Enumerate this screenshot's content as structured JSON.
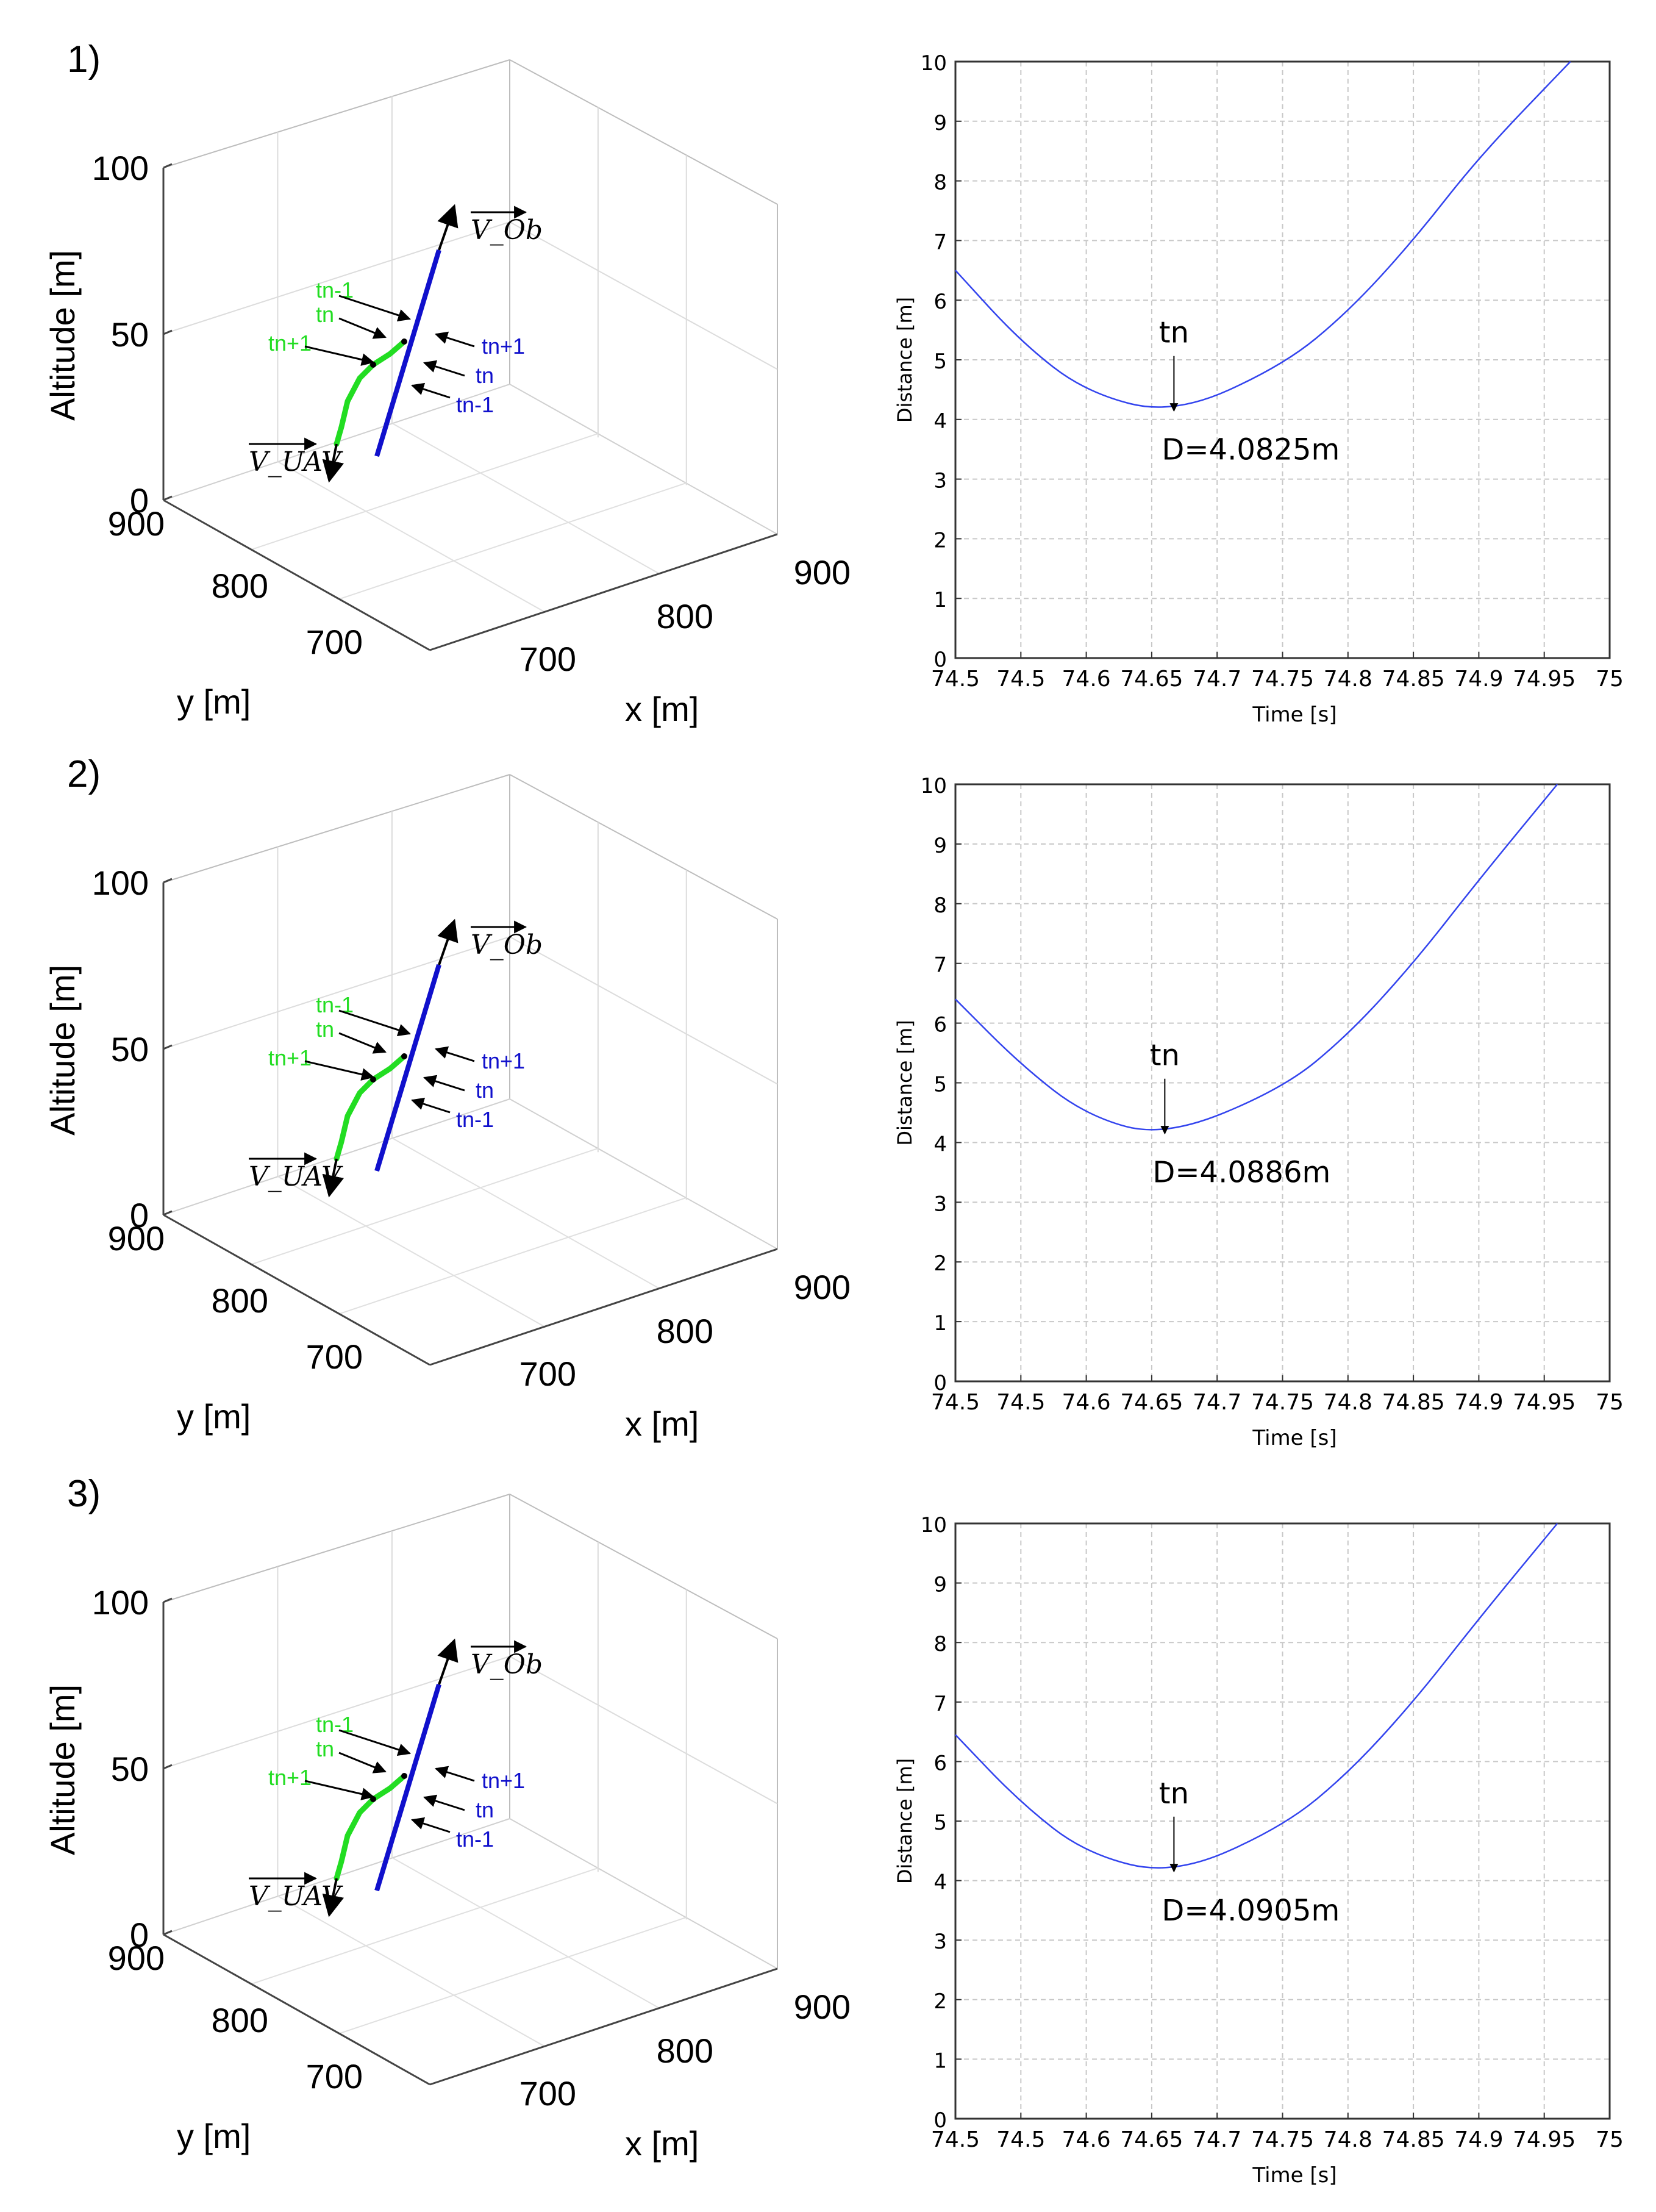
{
  "figure": {
    "panels": [
      {
        "label": "1)"
      },
      {
        "label": "2)"
      },
      {
        "label": "3)"
      }
    ]
  },
  "colors": {
    "uav": "#22dd22",
    "obstacle": "#1010cc",
    "distance_line": "#3344ee",
    "grid": "#c8c8c8",
    "axis": "#444444",
    "text": "#000000"
  },
  "chart_data": [
    {
      "type": "line3d",
      "panel": "1)",
      "xlabel": "x [m]",
      "ylabel": "y [m]",
      "zlabel": "Altitude [m]",
      "xticks": [
        "700",
        "800",
        "900"
      ],
      "yticks": [
        "700",
        "800",
        "900"
      ],
      "zticks": [
        "0",
        "50",
        "100"
      ],
      "vector_labels": {
        "obstacle": "V_Ob",
        "uav": "V_UAV"
      },
      "uav_markers": [
        "tn-1",
        "tn",
        "tn+1"
      ],
      "obstacle_markers": [
        "tn+1",
        "tn",
        "tn-1"
      ]
    },
    {
      "type": "line",
      "panel": "1)",
      "xlabel": "Time [s]",
      "ylabel": "Distance [m]",
      "xlim": [
        74.5,
        75
      ],
      "ylim": [
        0,
        10
      ],
      "xticks": [
        "74.5",
        "74.5",
        "74.6",
        "74.65",
        "74.7",
        "74.75",
        "74.8",
        "74.85",
        "74.9",
        "74.95",
        "75"
      ],
      "yticks": [
        "0",
        "1",
        "2",
        "3",
        "4",
        "5",
        "6",
        "7",
        "8",
        "9",
        "10"
      ],
      "series": [
        {
          "name": "distance",
          "x": [
            74.5,
            74.55,
            74.6,
            74.667,
            74.75,
            74.8,
            74.85,
            74.9,
            74.97
          ],
          "y": [
            6.5,
            5.3,
            4.45,
            4.08,
            4.9,
            5.8,
            7.0,
            8.4,
            10.0
          ]
        }
      ],
      "annotation": {
        "label": "tn",
        "x": 74.667,
        "y": 4.0825,
        "text": "D=4.0825m"
      }
    },
    {
      "type": "line3d",
      "panel": "2)",
      "xlabel": "x [m]",
      "ylabel": "y [m]",
      "zlabel": "Altitude [m]",
      "xticks": [
        "700",
        "800",
        "900"
      ],
      "yticks": [
        "700",
        "800",
        "900"
      ],
      "zticks": [
        "0",
        "50",
        "100"
      ],
      "vector_labels": {
        "obstacle": "V_Ob",
        "uav": "V_UAV"
      },
      "uav_markers": [
        "tn-1",
        "tn",
        "tn+1"
      ],
      "obstacle_markers": [
        "tn+1",
        "tn",
        "tn-1"
      ]
    },
    {
      "type": "line",
      "panel": "2)",
      "xlabel": "Time [s]",
      "ylabel": "Distance [m]",
      "xlim": [
        74.5,
        75
      ],
      "ylim": [
        0,
        10
      ],
      "xticks": [
        "74.5",
        "74.5",
        "74.6",
        "74.65",
        "74.7",
        "74.75",
        "74.8",
        "74.85",
        "74.9",
        "74.95",
        "75"
      ],
      "yticks": [
        "0",
        "1",
        "2",
        "3",
        "4",
        "5",
        "6",
        "7",
        "8",
        "9",
        "10"
      ],
      "series": [
        {
          "name": "distance",
          "x": [
            74.5,
            74.55,
            74.6,
            74.66,
            74.75,
            74.8,
            74.85,
            74.9,
            74.96
          ],
          "y": [
            6.4,
            5.3,
            4.45,
            4.09,
            4.9,
            5.8,
            7.0,
            8.4,
            10.0
          ]
        }
      ],
      "annotation": {
        "label": "tn",
        "x": 74.66,
        "y": 4.0886,
        "text": "D=4.0886m"
      }
    },
    {
      "type": "line3d",
      "panel": "3)",
      "xlabel": "x [m]",
      "ylabel": "y [m]",
      "zlabel": "Altitude [m]",
      "xticks": [
        "700",
        "800",
        "900"
      ],
      "yticks": [
        "700",
        "800",
        "900"
      ],
      "zticks": [
        "0",
        "50",
        "100"
      ],
      "vector_labels": {
        "obstacle": "V_Ob",
        "uav": "V_UAV"
      },
      "uav_markers": [
        "tn-1",
        "tn",
        "tn+1"
      ],
      "obstacle_markers": [
        "tn+1",
        "tn",
        "tn-1"
      ]
    },
    {
      "type": "line",
      "panel": "3)",
      "xlabel": "Time [s]",
      "ylabel": "Distance [m]",
      "xlim": [
        74.5,
        75
      ],
      "ylim": [
        0,
        10
      ],
      "xticks": [
        "74.5",
        "74.5",
        "74.6",
        "74.65",
        "74.7",
        "74.75",
        "74.8",
        "74.85",
        "74.9",
        "74.95",
        "75"
      ],
      "yticks": [
        "0",
        "1",
        "2",
        "3",
        "4",
        "5",
        "6",
        "7",
        "8",
        "9",
        "10"
      ],
      "series": [
        {
          "name": "distance",
          "x": [
            74.5,
            74.55,
            74.6,
            74.667,
            74.75,
            74.8,
            74.85,
            74.9,
            74.96
          ],
          "y": [
            6.45,
            5.3,
            4.45,
            4.09,
            4.9,
            5.8,
            7.0,
            8.4,
            10.0
          ]
        }
      ],
      "annotation": {
        "label": "tn",
        "x": 74.667,
        "y": 4.0905,
        "text": "D=4.0905m"
      }
    }
  ]
}
